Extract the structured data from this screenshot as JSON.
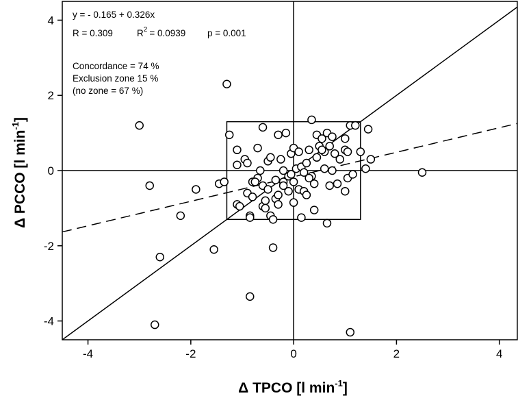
{
  "chart_data": {
    "type": "scatter",
    "title": "",
    "xlabel": "Δ TPCO [l min-1]",
    "ylabel": "Δ PCCO [l min-1]",
    "xlabel_parts": {
      "main": "Δ TPCO [l min",
      "sup": "-1",
      "end": "]"
    },
    "ylabel_parts": {
      "main": "Δ PCCO [l min",
      "sup": "-1",
      "end": "]"
    },
    "xlim": [
      -4.5,
      4.35
    ],
    "ylim": [
      -4.5,
      4.5
    ],
    "x_ticks": [
      -4,
      -2,
      0,
      2,
      4
    ],
    "y_ticks": [
      -4,
      -2,
      0,
      2,
      4
    ],
    "grid": false,
    "annotations": {
      "equation": "y = - 0.165 + 0.326x",
      "r": "R = 0.309",
      "r2_label": "R",
      "r2_sup": "2",
      "r2_value": "= 0.0939",
      "p": "p = 0.001",
      "concordance": "Concordance = 74 %",
      "exclusion": "Exclusion zone 15 %",
      "no_zone": "(no zone = 67 %)"
    },
    "exclusion_zone": {
      "x": [
        -1.3,
        1.3
      ],
      "y": [
        -1.3,
        1.3
      ]
    },
    "lines": [
      {
        "name": "identity",
        "style": "solid",
        "slope": 1,
        "intercept": 0
      },
      {
        "name": "regression",
        "style": "dashed",
        "slope": 0.326,
        "intercept": -0.165
      }
    ],
    "points": [
      [
        -1.3,
        2.3
      ],
      [
        -3.0,
        1.2
      ],
      [
        -2.8,
        -0.4
      ],
      [
        -2.2,
        -1.2
      ],
      [
        -2.6,
        -2.3
      ],
      [
        -2.7,
        -4.1
      ],
      [
        -1.55,
        -2.1
      ],
      [
        -1.9,
        -0.5
      ],
      [
        -1.45,
        -0.35
      ],
      [
        -1.35,
        -0.3
      ],
      [
        -1.25,
        0.95
      ],
      [
        -1.1,
        0.55
      ],
      [
        -1.1,
        0.15
      ],
      [
        -1.1,
        -0.9
      ],
      [
        -1.05,
        -0.95
      ],
      [
        -0.95,
        0.3
      ],
      [
        -0.9,
        0.2
      ],
      [
        -0.9,
        -0.6
      ],
      [
        -0.85,
        -1.2
      ],
      [
        -0.85,
        -1.25
      ],
      [
        -0.8,
        -0.3
      ],
      [
        -0.8,
        -0.7
      ],
      [
        -0.7,
        0.6
      ],
      [
        -0.7,
        -0.2
      ],
      [
        -0.65,
        0.0
      ],
      [
        -0.6,
        1.15
      ],
      [
        -0.6,
        -0.4
      ],
      [
        -0.6,
        -0.95
      ],
      [
        -0.55,
        -0.8
      ],
      [
        -0.55,
        -1.0
      ],
      [
        -0.5,
        0.25
      ],
      [
        -0.5,
        -0.5
      ],
      [
        -0.45,
        0.35
      ],
      [
        -0.45,
        -1.2
      ],
      [
        -0.4,
        -1.3
      ],
      [
        -0.4,
        -2.05
      ],
      [
        -0.35,
        -0.25
      ],
      [
        -0.35,
        -0.75
      ],
      [
        -0.3,
        0.95
      ],
      [
        -0.3,
        -0.65
      ],
      [
        -0.3,
        -0.9
      ],
      [
        -0.25,
        0.3
      ],
      [
        -0.2,
        0.0
      ],
      [
        -0.2,
        -0.3
      ],
      [
        -0.15,
        1.0
      ],
      [
        -0.1,
        -0.15
      ],
      [
        -0.1,
        -0.55
      ],
      [
        -0.05,
        0.45
      ],
      [
        -0.05,
        -0.1
      ],
      [
        0.0,
        0.6
      ],
      [
        0.0,
        -0.3
      ],
      [
        0.0,
        -0.85
      ],
      [
        0.05,
        0.05
      ],
      [
        0.1,
        0.5
      ],
      [
        0.1,
        -0.5
      ],
      [
        0.15,
        -1.25
      ],
      [
        0.15,
        0.1
      ],
      [
        0.2,
        -0.05
      ],
      [
        0.2,
        -0.55
      ],
      [
        0.25,
        -0.65
      ],
      [
        0.25,
        0.2
      ],
      [
        0.3,
        0.55
      ],
      [
        0.35,
        1.35
      ],
      [
        0.35,
        -0.15
      ],
      [
        0.4,
        -0.35
      ],
      [
        0.4,
        -1.05
      ],
      [
        0.45,
        0.35
      ],
      [
        0.45,
        0.95
      ],
      [
        0.5,
        0.65
      ],
      [
        0.55,
        0.85
      ],
      [
        0.6,
        0.05
      ],
      [
        0.6,
        0.5
      ],
      [
        0.65,
        1.0
      ],
      [
        0.65,
        -1.4
      ],
      [
        0.7,
        0.65
      ],
      [
        0.7,
        -0.4
      ],
      [
        0.75,
        0.9
      ],
      [
        0.75,
        0.0
      ],
      [
        0.8,
        0.45
      ],
      [
        0.85,
        -0.35
      ],
      [
        1.0,
        0.85
      ],
      [
        1.0,
        0.55
      ],
      [
        1.0,
        -0.55
      ],
      [
        1.05,
        -0.2
      ],
      [
        1.1,
        1.2
      ],
      [
        1.15,
        -0.1
      ],
      [
        1.2,
        1.2
      ],
      [
        1.3,
        0.5
      ],
      [
        1.4,
        0.05
      ],
      [
        1.45,
        1.1
      ],
      [
        1.5,
        0.3
      ],
      [
        1.1,
        -4.3
      ],
      [
        -0.85,
        -3.35
      ],
      [
        2.5,
        -0.05
      ],
      [
        1.05,
        0.5
      ],
      [
        0.55,
        0.55
      ],
      [
        -0.2,
        -0.4
      ],
      [
        0.3,
        -0.2
      ],
      [
        -0.75,
        -0.3
      ],
      [
        0.9,
        0.3
      ]
    ]
  }
}
